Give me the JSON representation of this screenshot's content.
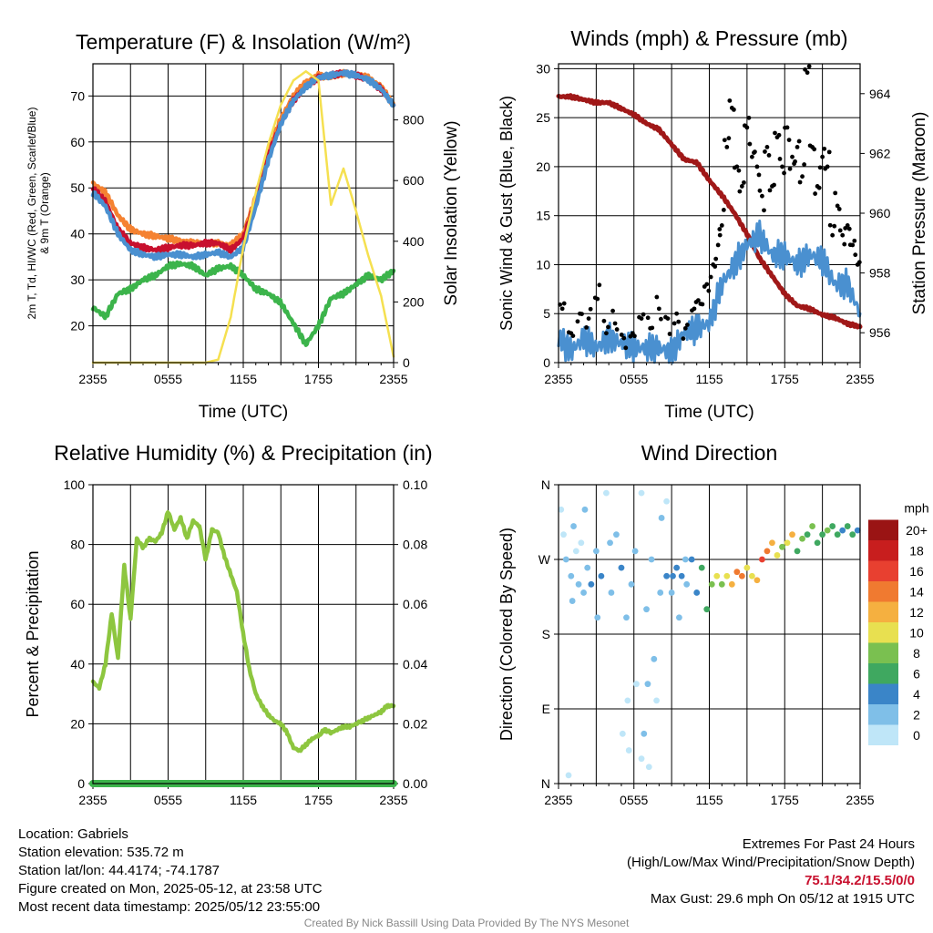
{
  "chart_data": [
    {
      "id": "temp",
      "type": "line",
      "title": "Temperature (F) & Insolation (W/m²)",
      "xlabel": "Time (UTC)",
      "ylabel_lines": [
        "2m T, Td, HI/WC (Red, Green, Scarlet/Blue)",
        "& 9m T (Orange)"
      ],
      "y2label": "Solar Insolation (Yellow)",
      "x_ticks": [
        "2355",
        "0555",
        "1155",
        "1755",
        "2355"
      ],
      "ylim": [
        12,
        77
      ],
      "y_ticks": [
        20,
        30,
        40,
        50,
        60,
        70
      ],
      "y2lim": [
        0,
        985
      ],
      "y2_ticks": [
        0,
        200,
        400,
        600,
        800
      ],
      "series": [
        {
          "color": "#f58231",
          "x": [
            0,
            1,
            2,
            3,
            4,
            5,
            6,
            7,
            8,
            9,
            10,
            11,
            12,
            13,
            14,
            15,
            16,
            17,
            18,
            19,
            20,
            21,
            22,
            23,
            24
          ],
          "values": [
            51,
            49,
            44,
            41,
            40,
            39.5,
            39,
            38.5,
            38,
            38,
            38,
            37.5,
            40,
            48,
            58,
            65,
            70,
            73,
            74.5,
            74,
            75,
            74.5,
            74,
            72,
            68
          ]
        },
        {
          "color": "#c8102e",
          "x": [
            0,
            1,
            2,
            3,
            4,
            5,
            6,
            7,
            8,
            9,
            10,
            11,
            12,
            13,
            14,
            15,
            16,
            17,
            18,
            19,
            20,
            21,
            22,
            23,
            24
          ],
          "values": [
            50,
            47,
            41,
            38,
            37,
            36.5,
            37,
            37.5,
            37.5,
            38,
            38,
            36.5,
            39,
            47,
            57,
            64,
            69,
            72,
            74,
            74.5,
            75,
            74.5,
            73.5,
            71.5,
            68
          ]
        },
        {
          "color": "#4a90d0",
          "x": [
            0,
            1,
            2,
            3,
            4,
            5,
            6,
            7,
            8,
            9,
            10,
            11,
            12,
            13,
            14,
            15,
            16,
            17,
            18,
            19,
            20,
            21,
            22,
            23,
            24
          ],
          "values": [
            49,
            46,
            40,
            36.5,
            35.5,
            35,
            35.5,
            35.5,
            35,
            35.5,
            36,
            35,
            37,
            46,
            56,
            64,
            69,
            72,
            74,
            74.5,
            75,
            74.5,
            73.5,
            71.5,
            68
          ]
        },
        {
          "color": "#3cb44b",
          "x": [
            0,
            1,
            2,
            3,
            4,
            5,
            6,
            7,
            8,
            9,
            10,
            11,
            12,
            13,
            14,
            15,
            16,
            17,
            18,
            19,
            20,
            21,
            22,
            23,
            24
          ],
          "values": [
            24,
            22,
            27,
            28,
            30,
            31,
            33,
            33.5,
            33,
            31,
            32.5,
            33,
            31,
            28,
            27,
            25,
            20.5,
            16,
            20,
            26,
            27,
            29,
            31,
            30,
            32
          ]
        },
        {
          "axis": "y2",
          "color": "#f5e050",
          "x": [
            0,
            1,
            2,
            3,
            4,
            5,
            6,
            7,
            8,
            9,
            10,
            11,
            12,
            13,
            14,
            15,
            16,
            17,
            18,
            19,
            20,
            21,
            22,
            23,
            24
          ],
          "values": [
            0,
            0,
            0,
            0,
            0,
            0,
            0,
            0,
            0,
            0,
            10,
            150,
            380,
            560,
            720,
            850,
            930,
            960,
            930,
            520,
            640,
            500,
            350,
            220,
            20
          ]
        }
      ]
    },
    {
      "id": "wind",
      "type": "line",
      "title": "Winds (mph) & Pressure (mb)",
      "xlabel": "Time (UTC)",
      "ylabel": "Sonic Wind & Gust (Blue, Black)",
      "y2label": "Station Pressure (Maroon)",
      "x_ticks": [
        "2355",
        "0555",
        "1155",
        "1755",
        "2355"
      ],
      "ylim": [
        0,
        30.5
      ],
      "y_ticks": [
        0,
        5,
        10,
        15,
        20,
        25,
        30
      ],
      "y2lim": [
        955,
        965
      ],
      "y2_ticks": [
        956,
        958,
        960,
        962,
        964
      ],
      "series": [
        {
          "axis": "y2",
          "color": "#a01818",
          "x": [
            0,
            1,
            2,
            3,
            4,
            5,
            6,
            7,
            8,
            9,
            10,
            11,
            12,
            13,
            14,
            15,
            16,
            17,
            18,
            19,
            20,
            21,
            22,
            23,
            24
          ],
          "values": [
            963.9,
            963.9,
            963.8,
            963.7,
            963.7,
            963.5,
            963.3,
            963,
            962.8,
            962.3,
            961.8,
            961.7,
            961.1,
            960.6,
            960,
            959.3,
            958.5,
            957.9,
            957.3,
            956.9,
            956.8,
            956.6,
            956.5,
            956.3,
            956.2
          ]
        },
        {
          "color": "#4a90d0",
          "x": [
            0,
            1,
            2,
            3,
            4,
            5,
            6,
            7,
            8,
            9,
            10,
            11,
            12,
            13,
            14,
            15,
            16,
            17,
            18,
            19,
            20,
            21,
            22,
            23,
            24
          ],
          "values": [
            2.5,
            1.2,
            2.5,
            1.5,
            2.5,
            2,
            1.5,
            1.5,
            1.5,
            1,
            3,
            3.5,
            4,
            8,
            10,
            12,
            13,
            11,
            11,
            10,
            11,
            10.5,
            8,
            8,
            5
          ]
        },
        {
          "mode": "markers",
          "color": "#000000",
          "x": [
            0.3,
            1.0,
            1.7,
            2.4,
            3.1,
            3.8,
            4.5,
            5.2,
            5.9,
            6.6,
            7.3,
            8.0,
            8.7,
            9.4,
            10.1,
            10.8,
            11.3,
            11.8,
            12.3,
            12.7,
            13.0,
            13.4,
            13.8,
            14.2,
            14.6,
            15.0,
            15.4,
            15.8,
            16.2,
            16.6,
            17.0,
            17.4,
            17.8,
            18.2,
            18.6,
            19.0,
            19.4,
            19.8,
            20.2,
            20.6,
            21.0,
            21.4,
            21.8,
            22.2,
            22.6,
            23.0,
            23.4,
            23.8
          ],
          "values": [
            5.5,
            3,
            5,
            4.5,
            6.5,
            3,
            4,
            2.5,
            3,
            4.5,
            3.5,
            5.5,
            4.5,
            5,
            3.5,
            5.5,
            6,
            8,
            10,
            12,
            14,
            22,
            26,
            20,
            18,
            24,
            21,
            20,
            17,
            22,
            18,
            23,
            20,
            24,
            21,
            22,
            19,
            29.6,
            22,
            18,
            21,
            20,
            13,
            16,
            13,
            14,
            12,
            10
          ]
        }
      ]
    },
    {
      "id": "rh",
      "type": "line",
      "title": "Relative Humidity (%) & Precipitation (in)",
      "ylabel": "Percent & Precipitation",
      "x_ticks": [
        "2355",
        "0555",
        "1155",
        "1755",
        "2355"
      ],
      "ylim": [
        0,
        100
      ],
      "y_ticks": [
        0,
        20,
        40,
        60,
        80,
        100
      ],
      "y2lim": [
        0,
        0.1
      ],
      "y2_ticks": [
        "0.00",
        "0.02",
        "0.04",
        "0.06",
        "0.08",
        "0.10"
      ],
      "series": [
        {
          "color": "#8dc63f",
          "x": [
            0,
            0.5,
            1,
            1.5,
            2,
            2.5,
            3,
            3.5,
            4,
            4.5,
            5,
            5.5,
            6,
            6.5,
            7,
            7.5,
            8,
            8.5,
            9,
            9.5,
            10,
            10.5,
            11,
            11.5,
            12,
            12.5,
            13,
            13.5,
            14,
            14.5,
            15,
            15.5,
            16,
            16.5,
            17,
            17.5,
            18,
            18.5,
            19,
            19.5,
            20,
            20.5,
            21,
            21.5,
            22,
            22.5,
            23,
            23.5,
            24
          ],
          "values": [
            34,
            32,
            40,
            57,
            42,
            73,
            55,
            82,
            79,
            82,
            81,
            84,
            91,
            85,
            89,
            82,
            88,
            86,
            75,
            85,
            84,
            76,
            70,
            64,
            50,
            38,
            30,
            26,
            23,
            21,
            20,
            17,
            12,
            11,
            13,
            15,
            16,
            18,
            17,
            18,
            19,
            19,
            20,
            21,
            22,
            23,
            24,
            26,
            26
          ]
        },
        {
          "axis": "y2",
          "color": "#3cb44b",
          "x": [
            0,
            24
          ],
          "values": [
            0,
            0
          ]
        }
      ]
    },
    {
      "id": "wdir",
      "type": "scatter",
      "title": "Wind Direction",
      "ylabel": "Direction (Colored By Speed)",
      "x_ticks": [
        "2355",
        "0555",
        "1155",
        "1755",
        "2355"
      ],
      "ylim": [
        0,
        360
      ],
      "y_ticks": [
        "N",
        "E",
        "S",
        "W",
        "N"
      ],
      "colorbar": {
        "unit": "mph",
        "labels": [
          "0",
          "2",
          "4",
          "6",
          "8",
          "10",
          "12",
          "14",
          "16",
          "18",
          "20+"
        ],
        "colors": [
          "#bfe6f8",
          "#7fbfe8",
          "#3a85c8",
          "#3fa860",
          "#7ac050",
          "#e8e050",
          "#f5b040",
          "#f07a30",
          "#e84030",
          "#c81e1e",
          "#9a1414"
        ]
      },
      "points": {
        "x": [
          0.2,
          0.4,
          0.6,
          0.8,
          1.0,
          1.2,
          1.4,
          1.6,
          1.8,
          2.0,
          2.3,
          2.6,
          3.0,
          3.4,
          3.8,
          4.2,
          4.6,
          5.0,
          5.4,
          5.8,
          6.2,
          6.6,
          7.0,
          7.4,
          7.8,
          8.2,
          8.6,
          9.0,
          9.4,
          9.8,
          10.2,
          10.6,
          11.0,
          11.4,
          11.8,
          12.2,
          12.6,
          13.0,
          13.4,
          13.8,
          14.2,
          14.6,
          15.0,
          15.4,
          15.8,
          16.2,
          16.6,
          17.0,
          17.4,
          17.8,
          18.2,
          18.6,
          19.0,
          19.4,
          19.8,
          20.2,
          20.6,
          21.0,
          21.4,
          21.8,
          22.2,
          22.6,
          23.0,
          23.4,
          23.8,
          1.1,
          2.1,
          3.1,
          4.1,
          5.1,
          6.1,
          7.1,
          8.1,
          9.1,
          10.1,
          5.6,
          6.6,
          7.6,
          8.6,
          9.6,
          5.5,
          6.8,
          7.2
        ],
        "values": [
          330,
          300,
          270,
          10,
          250,
          310,
          280,
          240,
          290,
          230,
          260,
          240,
          280,
          250,
          350,
          230,
          300,
          260,
          200,
          240,
          120,
          350,
          210,
          270,
          100,
          320,
          250,
          230,
          260,
          250,
          240,
          270,
          230,
          260,
          210,
          240,
          250,
          240,
          250,
          240,
          255,
          250,
          260,
          250,
          245,
          270,
          280,
          290,
          275,
          285,
          290,
          300,
          280,
          295,
          300,
          310,
          290,
          300,
          305,
          310,
          300,
          305,
          310,
          300,
          305,
          220,
          330,
          200,
          290,
          60,
          280,
          120,
          230,
          250,
          270,
          40,
          30,
          150,
          340,
          200,
          100,
          60,
          20
        ],
        "speeds": [
          1,
          1,
          2,
          1,
          3,
          2,
          1,
          3,
          1,
          2,
          3,
          4,
          3,
          4,
          1,
          3,
          2,
          4,
          3,
          2,
          1,
          1,
          3,
          3,
          1,
          2,
          4,
          3,
          5,
          4,
          3,
          4,
          5,
          6,
          7,
          9,
          10,
          8,
          11,
          13,
          14,
          15,
          10,
          11,
          13,
          16,
          14,
          12,
          11,
          9,
          10,
          12,
          7,
          8,
          6,
          9,
          7,
          6,
          8,
          7,
          6,
          5,
          6,
          6,
          5,
          2,
          2,
          3,
          2,
          1,
          3,
          2,
          3,
          4,
          3,
          1,
          1,
          2,
          1,
          2,
          1,
          2,
          1
        ]
      }
    }
  ],
  "info": {
    "location": "Location: Gabriels",
    "elevation": "Station elevation: 535.72 m",
    "latlon": "Station lat/lon: 44.4174; -74.1787",
    "created": "Figure created on Mon, 2025-05-12, at 23:58 UTC",
    "recent": "Most recent data timestamp: 2025/05/12 23:55:00"
  },
  "extremes": {
    "title": "Extremes For Past 24 Hours",
    "legend": "(High/Low/Max Wind/Precipitation/Snow Depth)",
    "values": "75.1/34.2/15.5/0/0",
    "gust": "Max Gust: 29.6 mph On 05/12 at 1915 UTC"
  },
  "credit": "Created By Nick Bassill Using Data Provided By The NYS Mesonet"
}
